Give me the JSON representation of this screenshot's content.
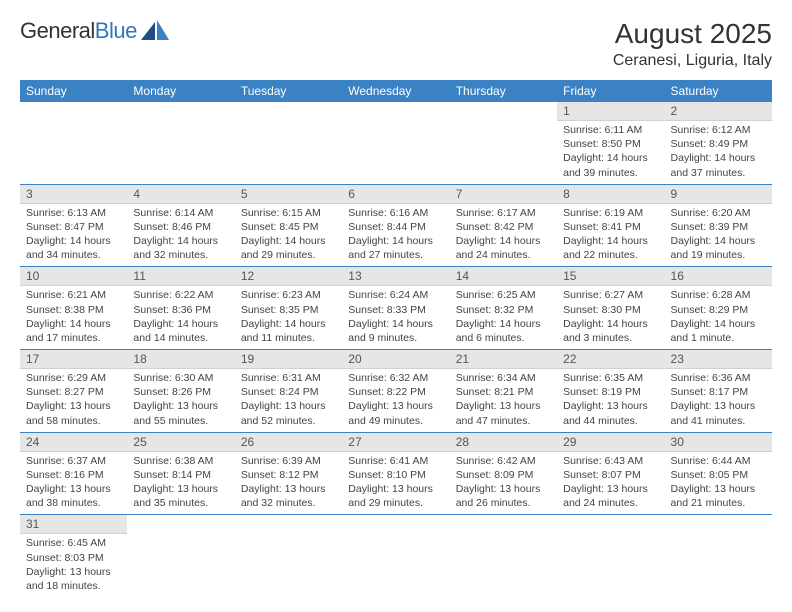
{
  "logo": {
    "text1": "General",
    "text2": "Blue"
  },
  "header": {
    "month_title": "August 2025",
    "location": "Ceranesi, Liguria, Italy"
  },
  "colors": {
    "header_bg": "#3b82c4",
    "header_fg": "#ffffff",
    "daynum_bg": "#e6e6e6",
    "cell_border": "#3b82c4",
    "logo_accent": "#2f77bb"
  },
  "weekdays": [
    "Sunday",
    "Monday",
    "Tuesday",
    "Wednesday",
    "Thursday",
    "Friday",
    "Saturday"
  ],
  "weeks": [
    [
      null,
      null,
      null,
      null,
      null,
      {
        "n": "1",
        "sr": "Sunrise: 6:11 AM",
        "ss": "Sunset: 8:50 PM",
        "dl": "Daylight: 14 hours and 39 minutes."
      },
      {
        "n": "2",
        "sr": "Sunrise: 6:12 AM",
        "ss": "Sunset: 8:49 PM",
        "dl": "Daylight: 14 hours and 37 minutes."
      }
    ],
    [
      {
        "n": "3",
        "sr": "Sunrise: 6:13 AM",
        "ss": "Sunset: 8:47 PM",
        "dl": "Daylight: 14 hours and 34 minutes."
      },
      {
        "n": "4",
        "sr": "Sunrise: 6:14 AM",
        "ss": "Sunset: 8:46 PM",
        "dl": "Daylight: 14 hours and 32 minutes."
      },
      {
        "n": "5",
        "sr": "Sunrise: 6:15 AM",
        "ss": "Sunset: 8:45 PM",
        "dl": "Daylight: 14 hours and 29 minutes."
      },
      {
        "n": "6",
        "sr": "Sunrise: 6:16 AM",
        "ss": "Sunset: 8:44 PM",
        "dl": "Daylight: 14 hours and 27 minutes."
      },
      {
        "n": "7",
        "sr": "Sunrise: 6:17 AM",
        "ss": "Sunset: 8:42 PM",
        "dl": "Daylight: 14 hours and 24 minutes."
      },
      {
        "n": "8",
        "sr": "Sunrise: 6:19 AM",
        "ss": "Sunset: 8:41 PM",
        "dl": "Daylight: 14 hours and 22 minutes."
      },
      {
        "n": "9",
        "sr": "Sunrise: 6:20 AM",
        "ss": "Sunset: 8:39 PM",
        "dl": "Daylight: 14 hours and 19 minutes."
      }
    ],
    [
      {
        "n": "10",
        "sr": "Sunrise: 6:21 AM",
        "ss": "Sunset: 8:38 PM",
        "dl": "Daylight: 14 hours and 17 minutes."
      },
      {
        "n": "11",
        "sr": "Sunrise: 6:22 AM",
        "ss": "Sunset: 8:36 PM",
        "dl": "Daylight: 14 hours and 14 minutes."
      },
      {
        "n": "12",
        "sr": "Sunrise: 6:23 AM",
        "ss": "Sunset: 8:35 PM",
        "dl": "Daylight: 14 hours and 11 minutes."
      },
      {
        "n": "13",
        "sr": "Sunrise: 6:24 AM",
        "ss": "Sunset: 8:33 PM",
        "dl": "Daylight: 14 hours and 9 minutes."
      },
      {
        "n": "14",
        "sr": "Sunrise: 6:25 AM",
        "ss": "Sunset: 8:32 PM",
        "dl": "Daylight: 14 hours and 6 minutes."
      },
      {
        "n": "15",
        "sr": "Sunrise: 6:27 AM",
        "ss": "Sunset: 8:30 PM",
        "dl": "Daylight: 14 hours and 3 minutes."
      },
      {
        "n": "16",
        "sr": "Sunrise: 6:28 AM",
        "ss": "Sunset: 8:29 PM",
        "dl": "Daylight: 14 hours and 1 minute."
      }
    ],
    [
      {
        "n": "17",
        "sr": "Sunrise: 6:29 AM",
        "ss": "Sunset: 8:27 PM",
        "dl": "Daylight: 13 hours and 58 minutes."
      },
      {
        "n": "18",
        "sr": "Sunrise: 6:30 AM",
        "ss": "Sunset: 8:26 PM",
        "dl": "Daylight: 13 hours and 55 minutes."
      },
      {
        "n": "19",
        "sr": "Sunrise: 6:31 AM",
        "ss": "Sunset: 8:24 PM",
        "dl": "Daylight: 13 hours and 52 minutes."
      },
      {
        "n": "20",
        "sr": "Sunrise: 6:32 AM",
        "ss": "Sunset: 8:22 PM",
        "dl": "Daylight: 13 hours and 49 minutes."
      },
      {
        "n": "21",
        "sr": "Sunrise: 6:34 AM",
        "ss": "Sunset: 8:21 PM",
        "dl": "Daylight: 13 hours and 47 minutes."
      },
      {
        "n": "22",
        "sr": "Sunrise: 6:35 AM",
        "ss": "Sunset: 8:19 PM",
        "dl": "Daylight: 13 hours and 44 minutes."
      },
      {
        "n": "23",
        "sr": "Sunrise: 6:36 AM",
        "ss": "Sunset: 8:17 PM",
        "dl": "Daylight: 13 hours and 41 minutes."
      }
    ],
    [
      {
        "n": "24",
        "sr": "Sunrise: 6:37 AM",
        "ss": "Sunset: 8:16 PM",
        "dl": "Daylight: 13 hours and 38 minutes."
      },
      {
        "n": "25",
        "sr": "Sunrise: 6:38 AM",
        "ss": "Sunset: 8:14 PM",
        "dl": "Daylight: 13 hours and 35 minutes."
      },
      {
        "n": "26",
        "sr": "Sunrise: 6:39 AM",
        "ss": "Sunset: 8:12 PM",
        "dl": "Daylight: 13 hours and 32 minutes."
      },
      {
        "n": "27",
        "sr": "Sunrise: 6:41 AM",
        "ss": "Sunset: 8:10 PM",
        "dl": "Daylight: 13 hours and 29 minutes."
      },
      {
        "n": "28",
        "sr": "Sunrise: 6:42 AM",
        "ss": "Sunset: 8:09 PM",
        "dl": "Daylight: 13 hours and 26 minutes."
      },
      {
        "n": "29",
        "sr": "Sunrise: 6:43 AM",
        "ss": "Sunset: 8:07 PM",
        "dl": "Daylight: 13 hours and 24 minutes."
      },
      {
        "n": "30",
        "sr": "Sunrise: 6:44 AM",
        "ss": "Sunset: 8:05 PM",
        "dl": "Daylight: 13 hours and 21 minutes."
      }
    ],
    [
      {
        "n": "31",
        "sr": "Sunrise: 6:45 AM",
        "ss": "Sunset: 8:03 PM",
        "dl": "Daylight: 13 hours and 18 minutes."
      },
      null,
      null,
      null,
      null,
      null,
      null
    ]
  ]
}
